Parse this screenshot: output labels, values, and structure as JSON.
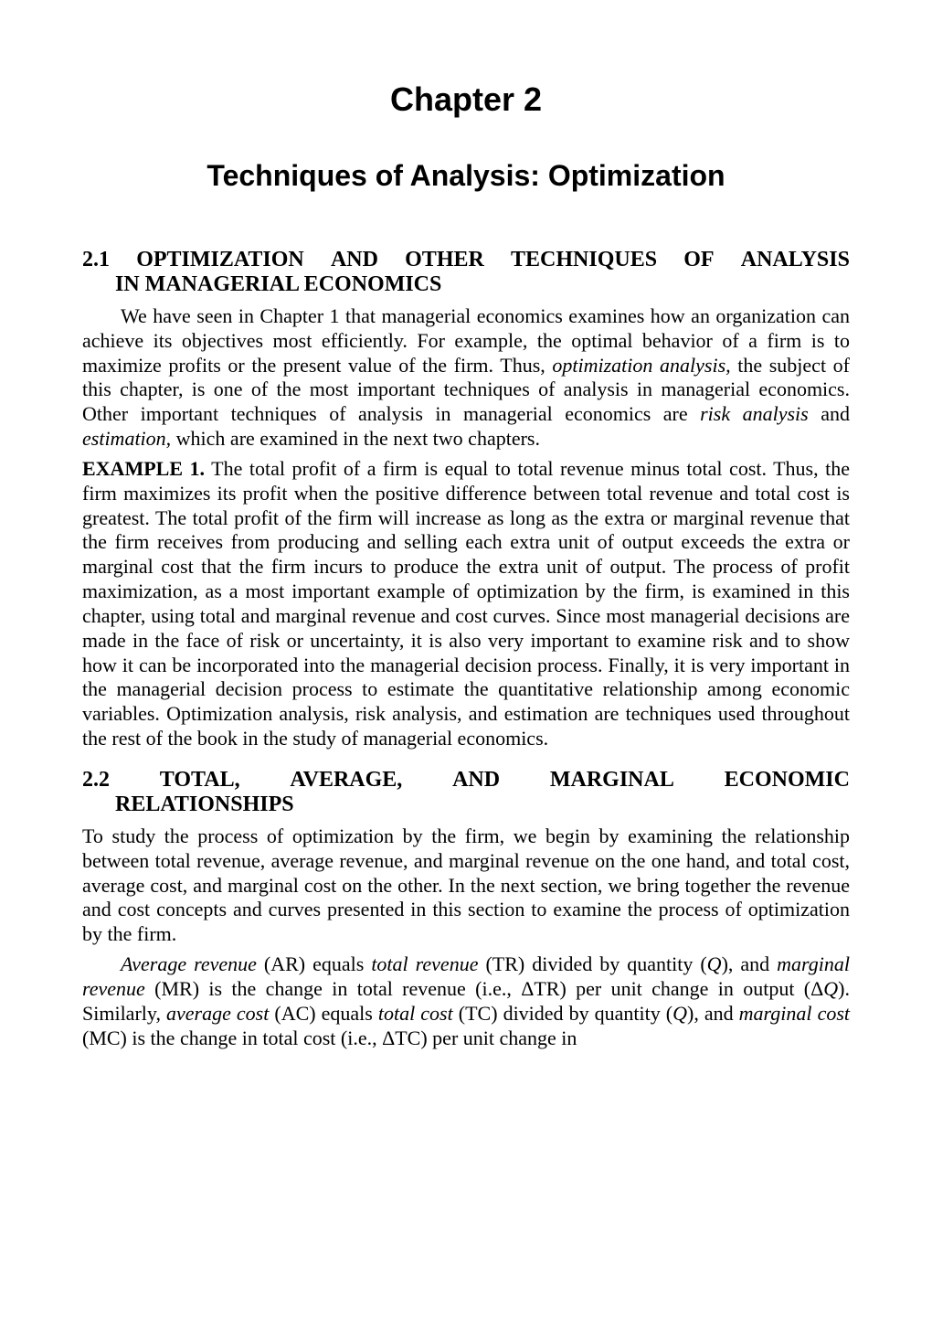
{
  "chapter": {
    "number_label": "Chapter 2",
    "title": "Techniques of Analysis: Optimization"
  },
  "section21": {
    "heading_l1_words": [
      "2.1",
      "OPTIMIZATION",
      "AND",
      "OTHER",
      "TECHNIQUES",
      "OF",
      "ANALYSIS"
    ],
    "heading_l2": "IN MANAGERIAL ECONOMICS",
    "para1_a": "We have seen in Chapter 1 that managerial economics examines how an organization can achieve its objectives most efficiently. For example, the optimal behavior of a firm is to maximize profits or the present value of the firm. Thus, ",
    "para1_b_italic": "optimization analysis,",
    "para1_c": " the subject of this chapter, is one of the most important techniques of analysis in managerial economics. Other important techniques of analysis in managerial economics are ",
    "para1_d_italic": "risk analysis",
    "para1_e": " and ",
    "para1_f_italic": "estimation,",
    "para1_g": " which are examined in the next two chapters.",
    "example_label": "EXAMPLE 1.",
    "example_text": "  The total profit of a firm is equal to total revenue minus total cost. Thus, the firm maximizes its profit when the positive difference between total revenue and total cost is greatest. The total profit of the firm will increase as long as the extra or marginal revenue that the firm receives from producing and selling each extra unit of output exceeds the extra or marginal cost that the firm incurs to produce the extra unit of output. The process of profit maximization, as a most important example of optimization by the firm, is examined in this chapter, using total and marginal revenue and cost curves. Since most managerial decisions are made in the face of risk or uncertainty, it is also very important to examine risk and to show how it can be incorporated into the managerial decision process. Finally, it is very important in the managerial decision process to estimate the quantitative relationship among economic variables. Optimization analysis, risk analysis, and estimation are techniques used throughout the rest of the book in the study of managerial economics."
  },
  "section22": {
    "heading_l1_words": [
      "2.2",
      "TOTAL,",
      "AVERAGE,",
      "AND",
      "MARGINAL",
      "ECONOMIC"
    ],
    "heading_l2": "RELATIONSHIPS",
    "para1": "To study the process of optimization by the firm, we begin by examining the relationship between total revenue, average revenue, and marginal revenue on the one hand, and total cost, average cost, and marginal cost on the other. In the next section, we bring together the revenue and cost concepts and curves presented in this section to examine the process of optimization by the firm.",
    "p2_a_italic": "Average revenue",
    "p2_b": " (AR) equals ",
    "p2_c_italic": "total revenue",
    "p2_d": " (TR) divided by quantity (",
    "p2_e_italic": "Q",
    "p2_f": "), and ",
    "p2_g_italic": "marginal revenue",
    "p2_h": " (MR) is the change in total revenue (i.e., ΔTR) per unit change in output (Δ",
    "p2_i_italic": "Q",
    "p2_j": "). Similarly, ",
    "p2_k_italic": "average cost",
    "p2_l": " (AC) equals ",
    "p2_m_italic": "total cost",
    "p2_n": " (TC) divided by quantity (",
    "p2_o_italic": "Q",
    "p2_p": "), and ",
    "p2_q_italic": "marginal cost",
    "p2_r": " (MC) is the change in total cost (i.e., ΔTC) per unit change in"
  },
  "colors": {
    "text": "#000000",
    "background": "#ffffff"
  },
  "typography": {
    "body_family": "Times New Roman",
    "heading_family_chapter": "Arial",
    "chapter_number_fontsize_pt": 27,
    "chapter_title_fontsize_pt": 24,
    "section_heading_fontsize_pt": 18,
    "body_fontsize_pt": 16
  }
}
